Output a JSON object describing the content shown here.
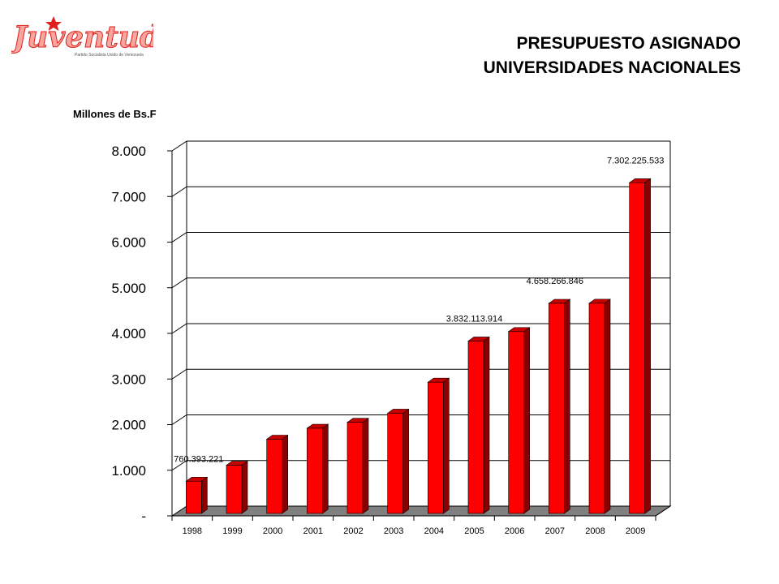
{
  "logo": {
    "brand_text": "Juventud",
    "tagline": "Partido Socialista Unido de Venezuela",
    "colors": {
      "brand": "#e0201b",
      "brand_light": "#f7a59e"
    }
  },
  "header": {
    "title_line1": "PRESUPUESTO ASIGNADO",
    "title_line2": "UNIVERSIDADES NACIONALES"
  },
  "chart_data": {
    "type": "bar",
    "ylabel": "Millones de Bs.F",
    "categories": [
      "1998",
      "1999",
      "2000",
      "2001",
      "2002",
      "2003",
      "2004",
      "2005",
      "2006",
      "2007",
      "2008",
      "2009"
    ],
    "values": [
      760,
      1110,
      1680,
      1920,
      2050,
      2250,
      2930,
      3832,
      4040,
      4658,
      4660,
      7302
    ],
    "ylim": [
      0,
      8000
    ],
    "yticks": [
      0,
      1000,
      2000,
      3000,
      4000,
      5000,
      6000,
      7000,
      8000
    ],
    "ytick_labels": [
      "-",
      "1.000",
      "2.000",
      "3.000",
      "4.000",
      "5.000",
      "6.000",
      "7.000",
      "8.000"
    ],
    "annotations": [
      {
        "index": 0,
        "text": "760.393.221"
      },
      {
        "index": 7,
        "text": "3.832.113.914"
      },
      {
        "index": 9,
        "text": "4.658.266.846"
      },
      {
        "index": 11,
        "text": "7.302.225.533"
      }
    ],
    "grid": true,
    "legend": "none",
    "colors": {
      "bar": "#ff0000",
      "bar_side": "#8a0000",
      "bar_top": "#c80000",
      "floor": "#808080"
    }
  }
}
